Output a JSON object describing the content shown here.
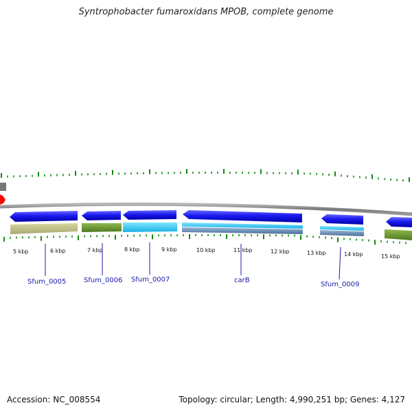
{
  "title": "Syntrophobacter fumaroxidans MPOB, complete genome",
  "footer": {
    "accession": "Accession: NC_008554",
    "stats": "Topology: circular; Length: 4,990,251 bp; Genes: 4,127"
  },
  "scale_labels": [
    "5 kbp",
    "6 kbp",
    "7 kbp",
    "8 kbp",
    "9 kbp",
    "10 kbp",
    "11 kbp",
    "12 kbp",
    "13 kbp",
    "14 kbp",
    "15 kbp"
  ],
  "gene_labels": [
    "Sfum_0005",
    "Sfum_0006",
    "Sfum_0007",
    "carB",
    "Sfum_0009"
  ],
  "colors": {
    "backbone": "#8a8a8a",
    "cds": "#1a1af0",
    "tick": "#118811",
    "label": "#1a1aaa",
    "marker": "#ff0000"
  }
}
